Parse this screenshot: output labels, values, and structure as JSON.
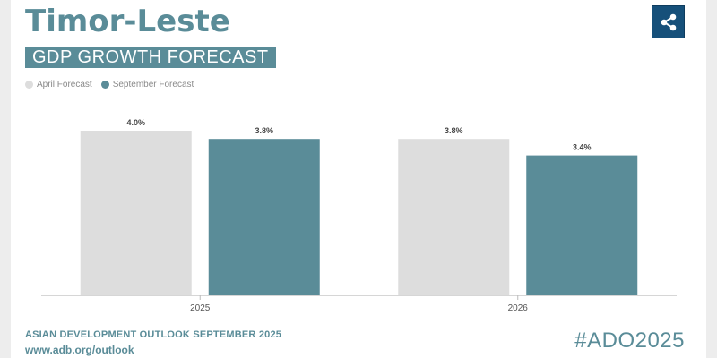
{
  "header": {
    "title": "Timor-Leste",
    "subtitle": "GDP GROWTH FORECAST"
  },
  "share_button": {
    "icon": "share-icon",
    "color": "#16507a"
  },
  "colors": {
    "april": "#dddddd",
    "september": "#5a8c98",
    "accent": "#5a8c98"
  },
  "chart_data": {
    "type": "bar",
    "categories": [
      "2025",
      "2026"
    ],
    "series": [
      {
        "name": "April Forecast",
        "values": [
          4.0,
          3.8
        ],
        "labels": [
          "4.0%",
          "3.8%"
        ]
      },
      {
        "name": "September Forecast",
        "values": [
          3.8,
          3.4
        ],
        "labels": [
          "3.8%",
          "3.4%"
        ]
      }
    ],
    "title": "GDP GROWTH FORECAST",
    "xlabel": "",
    "ylabel": "",
    "ylim": [
      0,
      4.0
    ],
    "legend": "top-left",
    "grid": false
  },
  "footer": {
    "publication": "ASIAN DEVELOPMENT OUTLOOK SEPTEMBER 2025",
    "url": "www.adb.org/outlook",
    "hashtag": "#ADO2025"
  }
}
